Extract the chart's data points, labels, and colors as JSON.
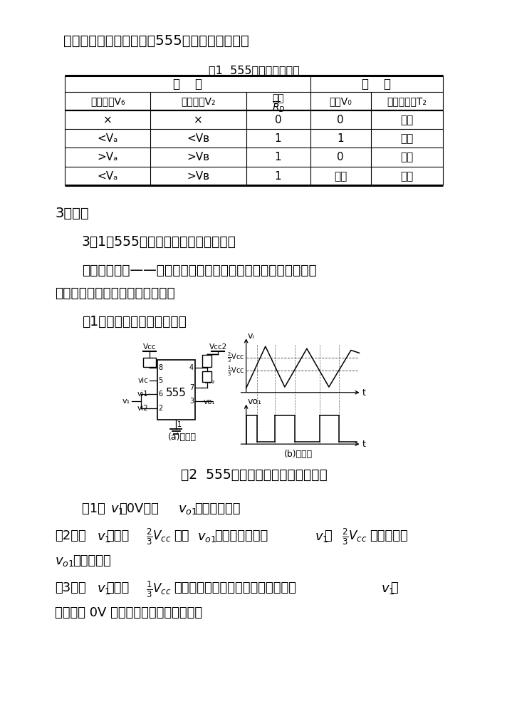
{
  "bg_color": "#ffffff",
  "page_width": 9.2,
  "page_height": 13.02,
  "text_color": "#000000",
  "title_text": "这样我们就得到了表１　555定时器的功能表。",
  "table_caption": "表1  555定时器的功能表",
  "header_input": "输    入",
  "header_output": "输    出",
  "col0_hdr": "阈値输入V₆",
  "col1_hdr": "触发输入V₂",
  "col2_hdr": "复位",
  "col3_hdr": "输出V₀",
  "col4_hdr": "放电管状态T₂",
  "row0": [
    "×",
    "×",
    "0",
    "0",
    "导通"
  ],
  "row1": [
    "<V₀",
    "<Vʙ",
    "1",
    "1",
    "截止"
  ],
  "row2": [
    ">V₀",
    ">Vʙ",
    "1",
    "0",
    "导通"
  ],
  "row3": [
    "<V₀",
    ">Vʙ",
    "1",
    "不变",
    "不变"
  ],
  "section3": "3．应用",
  "section31": "3．1用555定时器构成的施密特触发器",
  "desc1": "施密特触发器——具有回差电压特性，能将边沿变化缓慢的电压",
  "desc2": "波形整形为边沿陡岀的矩形脉冲。",
  "circuit_header": "【1】　电路组成及工作原理",
  "fig2_cap": "图2  555定时器构成的施密特触发器",
  "fig_a": "(a)电路图",
  "fig_b": "(b)波形图",
  "p1_pre": "(１)　",
  "p1_mid": "＝0V时，",
  "p1_post": "输出高电平。",
  "p2_pre": "(２)当",
  "p2_rise": "上升到",
  "p2_when": "时，",
  "p2_out_low": "输出低电平。当",
  "p2_by": "由",
  "p2_continue": "继续上升，",
  "p2b_keep": "保持不变。",
  "p3_pre": "(３)当",
  "p3_fall": "下降到",
  "p3_post": "时，电路输出跳变为高电平。而且在",
  "p3_cont": "继",
  "p3b": "续下降到 0V 时，电路的这种状态不变。"
}
